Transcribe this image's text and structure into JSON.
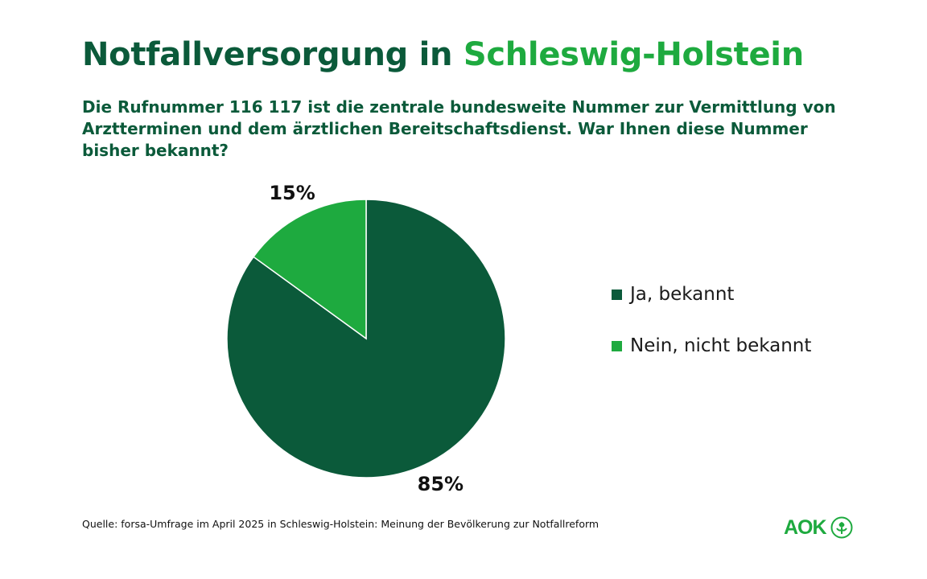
{
  "header": {
    "title_part1": "Notfallversorgung in",
    "title_part2": "Schleswig-Holstein",
    "subtitle": "Die Rufnummer 116 117 ist die zentrale bundesweite Nummer zur Vermittlung von Arztterminen und dem ärztlichen Bereitschaftsdienst. War Ihnen diese Nummer bisher bekannt?"
  },
  "chart_data": {
    "type": "pie",
    "title": "Notfallversorgung in Schleswig-Holstein",
    "categories": [
      "Ja, bekannt",
      "Nein, nicht bekannt"
    ],
    "values": [
      85,
      15
    ],
    "labels": [
      "85%",
      "15%"
    ],
    "colors": [
      "#0b5a3a",
      "#1eaa3f"
    ],
    "legend_placement": "right"
  },
  "footer": {
    "source": "Quelle: forsa-Umfrage im April 2025 in Schleswig-Holstein: Meinung der Bevölkerung zur Notfallreform",
    "logo": "AOK"
  }
}
